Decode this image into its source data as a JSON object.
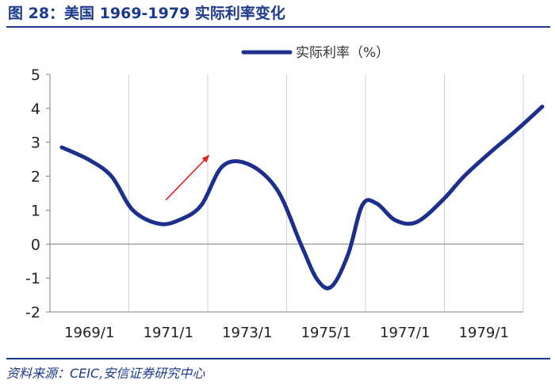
{
  "figure": {
    "title": "图 28：美国 1969-1979 实际利率变化",
    "source": "资料来源：CEIC,安信证券研究中心"
  },
  "chart_data": {
    "type": "line",
    "title": "",
    "xlabel": "",
    "ylabel": "",
    "x_ticks": [
      "1969/1",
      "1971/1",
      "1973/1",
      "1975/1",
      "1977/1",
      "1979/1"
    ],
    "y_ticks": [
      "5",
      "4",
      "3",
      "2",
      "1",
      "0",
      "-1",
      "-2"
    ],
    "ylim": [
      -2,
      5
    ],
    "xlim": [
      1969.0,
      1979.0
    ],
    "grid": "vertical",
    "legend_position": "top-center",
    "series": [
      {
        "name": "实际利率（%）",
        "color": "#1c2f8c",
        "x": [
          1969.25,
          1969.8,
          1970.3,
          1970.75,
          1971.3,
          1971.75,
          1972.2,
          1972.65,
          1973.2,
          1973.8,
          1974.3,
          1974.65,
          1974.95,
          1975.3,
          1975.6,
          1975.9,
          1976.3,
          1976.75,
          1977.3,
          1977.75,
          1978.3,
          1978.85,
          1979.4
        ],
        "values": [
          2.85,
          2.5,
          2.0,
          1.0,
          0.6,
          0.72,
          1.15,
          2.3,
          2.35,
          1.6,
          0.0,
          -1.05,
          -1.25,
          -0.3,
          1.15,
          1.2,
          0.7,
          0.65,
          1.3,
          2.0,
          2.7,
          3.35,
          4.05
        ]
      }
    ],
    "annotation": {
      "type": "arrow",
      "color": "#e8201e",
      "from": [
        1971.45,
        1.3
      ],
      "to": [
        1972.35,
        2.6
      ]
    }
  }
}
